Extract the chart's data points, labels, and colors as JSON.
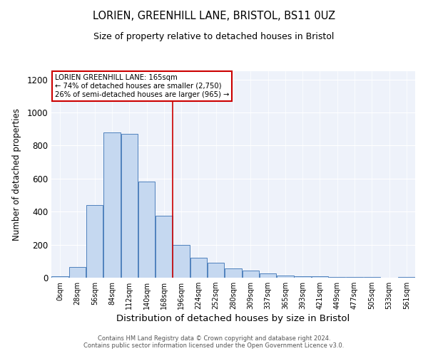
{
  "title1": "LORIEN, GREENHILL LANE, BRISTOL, BS11 0UZ",
  "title2": "Size of property relative to detached houses in Bristol",
  "xlabel": "Distribution of detached houses by size in Bristol",
  "ylabel": "Number of detached properties",
  "annotation_title": "LORIEN GREENHILL LANE: 165sqm",
  "annotation_line2": "← 74% of detached houses are smaller (2,750)",
  "annotation_line3": "26% of semi-detached houses are larger (965) →",
  "bar_labels": [
    "0sqm",
    "28sqm",
    "56sqm",
    "84sqm",
    "112sqm",
    "140sqm",
    "168sqm",
    "196sqm",
    "224sqm",
    "252sqm",
    "280sqm",
    "309sqm",
    "337sqm",
    "365sqm",
    "393sqm",
    "421sqm",
    "449sqm",
    "477sqm",
    "505sqm",
    "533sqm",
    "561sqm"
  ],
  "bar_values": [
    10,
    65,
    440,
    880,
    870,
    580,
    375,
    200,
    120,
    90,
    55,
    42,
    25,
    15,
    10,
    7,
    5,
    3,
    3,
    2,
    5
  ],
  "bar_color": "#c5d8f0",
  "bar_edge_color": "#4f81bd",
  "vline_x_index": 6,
  "vline_color": "#cc0000",
  "annotation_box_color": "white",
  "annotation_box_edge": "#cc0000",
  "ylim": [
    0,
    1250
  ],
  "yticks": [
    0,
    200,
    400,
    600,
    800,
    1000,
    1200
  ],
  "footer_line1": "Contains HM Land Registry data © Crown copyright and database right 2024.",
  "footer_line2": "Contains public sector information licensed under the Open Government Licence v3.0.",
  "plot_bg_color": "#eef2fa"
}
